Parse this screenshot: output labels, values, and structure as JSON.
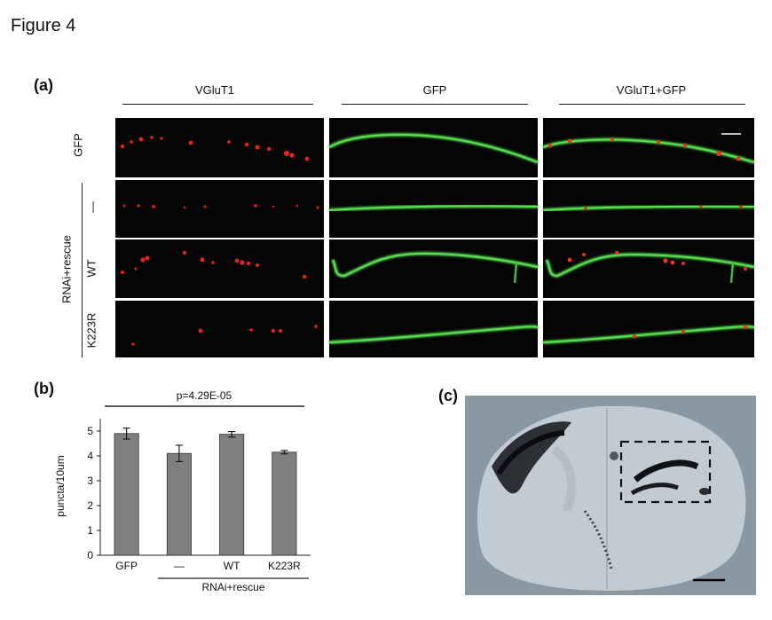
{
  "figure_title": "Figure 4",
  "panel_a": {
    "label": "(a)",
    "columns": [
      "VGluT1",
      "GFP",
      "VGluT1+GFP"
    ],
    "rows": [
      "GFP",
      "—",
      "WT",
      "K223R"
    ],
    "group_label": "RNAi+rescue"
  },
  "panel_b": {
    "label": "(b)",
    "pvalue": "p=4.29E-05",
    "ylabel": "puncta/10um",
    "group_label": "RNAi+rescue"
  },
  "panel_c": {
    "label": "(c)"
  },
  "colors": {
    "bar": "#7f7f7f",
    "puncta": "#e8231e",
    "neurite": "#3fbf3a",
    "brain_bg": "#808e99"
  },
  "chart_data": {
    "type": "bar",
    "categories": [
      "GFP",
      "—",
      "WT",
      "K223R"
    ],
    "values": [
      4.9,
      4.1,
      4.87,
      4.15
    ],
    "errors": [
      0.22,
      0.33,
      0.11,
      0.07
    ],
    "yticks": [
      "0",
      "1",
      "2",
      "3",
      "4",
      "5"
    ],
    "ylim": [
      0,
      5.5
    ],
    "ylabel": "puncta/10um",
    "group_label": "RNAi+rescue",
    "annotation": "p=4.29E-05"
  }
}
